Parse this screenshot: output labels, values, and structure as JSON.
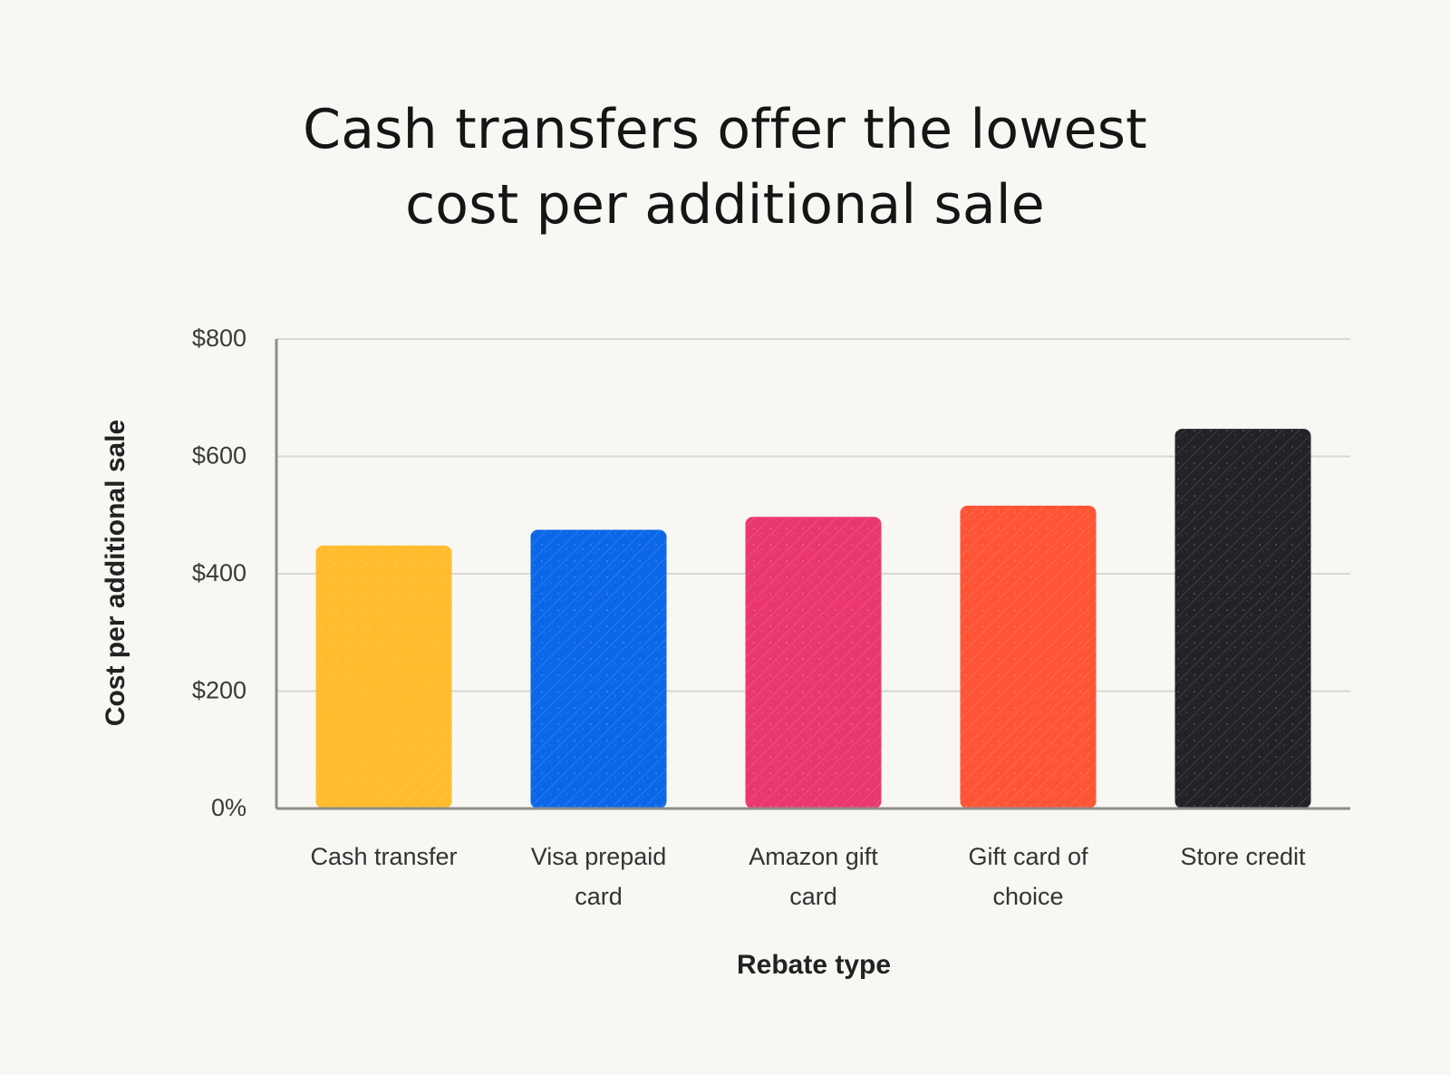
{
  "chart_data": {
    "type": "bar",
    "title": "Cash transfers offer the lowest cost per additional sale",
    "title_lines": [
      "Cash transfers offer the lowest",
      "cost per additional sale"
    ],
    "xlabel": "Rebate type",
    "ylabel": "Cost per additional sale",
    "categories": [
      "Cash transfer",
      "Visa prepaid card",
      "Amazon gift card",
      "Gift card of choice",
      "Store credit"
    ],
    "category_lines": [
      [
        "Cash transfer"
      ],
      [
        "Visa prepaid",
        "card"
      ],
      [
        "Amazon gift",
        "card"
      ],
      [
        "Gift card of",
        "choice"
      ],
      [
        "Store credit"
      ]
    ],
    "values": [
      448,
      475,
      497,
      516,
      647
    ],
    "ylim": [
      0,
      800
    ],
    "y_ticks": [
      0,
      200,
      400,
      600,
      800
    ],
    "y_tick_labels": [
      "0%",
      "$200",
      "$400",
      "$600",
      "$800"
    ],
    "colors": [
      "#ffbc2c",
      "#0b67e8",
      "#ea3770",
      "#ff5435",
      "#222327"
    ],
    "grid": true
  }
}
